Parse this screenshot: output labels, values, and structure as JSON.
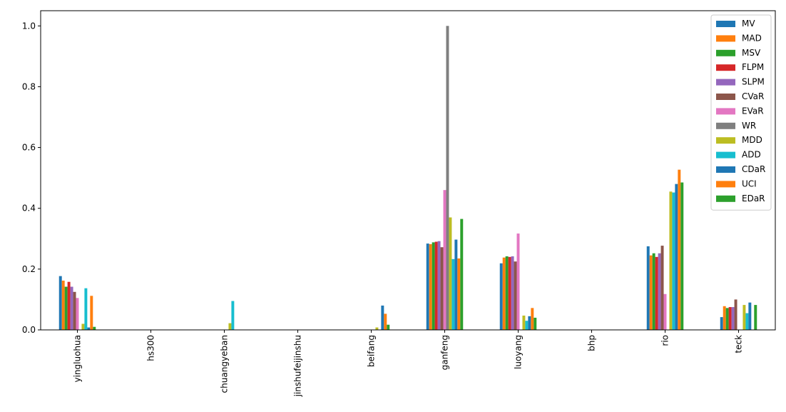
{
  "chart_data": {
    "type": "bar",
    "title": "",
    "xlabel": "",
    "ylabel": "",
    "ylim": [
      0,
      1.05
    ],
    "yticks": [
      0.0,
      0.2,
      0.4,
      0.6,
      0.8,
      1.0
    ],
    "ytick_labels": [
      "0.0",
      "0.2",
      "0.4",
      "0.6",
      "0.8",
      "1.0"
    ],
    "legend_position": "top-right",
    "grid": false,
    "categories": [
      "yingluohua",
      "hs300",
      "chuangyeban",
      "jinshufeijinshu",
      "beifang",
      "ganfeng",
      "luoyang",
      "bhp",
      "rio",
      "teck"
    ],
    "series": [
      {
        "name": "MV",
        "color": "#1f77b4",
        "values": [
          0.177,
          0,
          0,
          0,
          0,
          0.284,
          0.219,
          0,
          0.275,
          0.042
        ]
      },
      {
        "name": "MAD",
        "color": "#ff7f0e",
        "values": [
          0.162,
          0,
          0,
          0,
          0,
          0.282,
          0.238,
          0,
          0.245,
          0.078
        ]
      },
      {
        "name": "MSV",
        "color": "#2ca02c",
        "values": [
          0.142,
          0,
          0,
          0,
          0,
          0.288,
          0.242,
          0,
          0.252,
          0.072
        ]
      },
      {
        "name": "FLPM",
        "color": "#d62728",
        "values": [
          0.158,
          0,
          0,
          0,
          0,
          0.29,
          0.24,
          0,
          0.24,
          0.075
        ]
      },
      {
        "name": "SLPM",
        "color": "#9467bd",
        "values": [
          0.142,
          0,
          0,
          0,
          0,
          0.292,
          0.242,
          0,
          0.252,
          0.075
        ]
      },
      {
        "name": "CVaR",
        "color": "#8c564b",
        "values": [
          0.125,
          0,
          0,
          0,
          0,
          0.272,
          0.225,
          0,
          0.277,
          0.1
        ]
      },
      {
        "name": "EVaR",
        "color": "#e377c2",
        "values": [
          0.105,
          0,
          0,
          0,
          0,
          0.46,
          0.317,
          0,
          0.118,
          0.0
        ]
      },
      {
        "name": "WR",
        "color": "#7f7f7f",
        "values": [
          0.0,
          0,
          0,
          0,
          0,
          1.0,
          0.0,
          0,
          0.0,
          0.0
        ]
      },
      {
        "name": "MDD",
        "color": "#bcbd22",
        "values": [
          0.02,
          0,
          0.022,
          0,
          0.008,
          0.37,
          0.047,
          0,
          0.455,
          0.082
        ]
      },
      {
        "name": "ADD",
        "color": "#17becf",
        "values": [
          0.137,
          0,
          0.095,
          0,
          0.0,
          0.233,
          0.03,
          0,
          0.452,
          0.055
        ]
      },
      {
        "name": "CDaR",
        "color": "#1f77b4",
        "values": [
          0.008,
          0,
          0.0,
          0,
          0.08,
          0.297,
          0.045,
          0,
          0.48,
          0.09
        ]
      },
      {
        "name": "UCI",
        "color": "#ff7f0e",
        "values": [
          0.112,
          0,
          0.0,
          0,
          0.053,
          0.235,
          0.072,
          0,
          0.527,
          0.0
        ]
      },
      {
        "name": "EDaR",
        "color": "#2ca02c",
        "values": [
          0.01,
          0,
          0.0,
          0,
          0.017,
          0.365,
          0.04,
          0,
          0.485,
          0.082
        ]
      }
    ]
  }
}
